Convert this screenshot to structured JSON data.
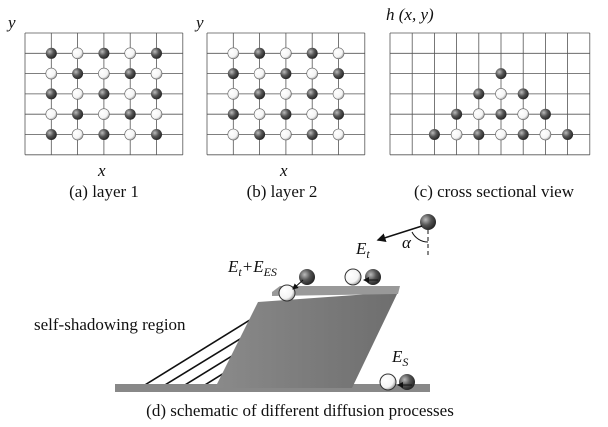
{
  "panels": [
    {
      "y_axis": "y",
      "x_axis": "x",
      "caption": "(a) layer 1"
    },
    {
      "y_axis": "y",
      "x_axis": "x",
      "caption": "(b) layer 2"
    },
    {
      "y_axis": "h (x, y)",
      "caption": "(c) cross sectional view"
    }
  ],
  "schematic": {
    "caption": "(d) schematic of different diffusion processes",
    "region": "self-shadowing region",
    "energies": [
      {
        "parts": [
          "E",
          "t",
          "+E",
          "ES"
        ]
      },
      {
        "parts": [
          "E",
          "t"
        ]
      },
      {
        "parts": [
          "E",
          "S"
        ]
      }
    ],
    "angle": "α"
  }
}
